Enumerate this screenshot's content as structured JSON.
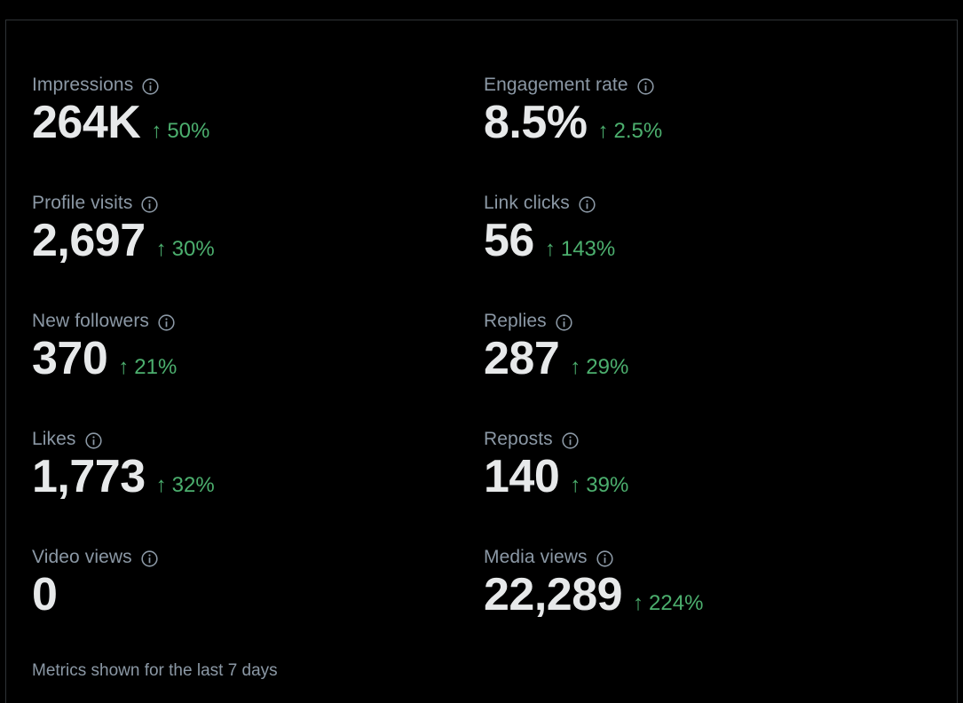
{
  "metrics": [
    {
      "label": "Impressions",
      "value": "264K",
      "change": "50%"
    },
    {
      "label": "Engagement rate",
      "value": "8.5%",
      "change": "2.5%"
    },
    {
      "label": "Profile visits",
      "value": "2,697",
      "change": "30%"
    },
    {
      "label": "Link clicks",
      "value": "56",
      "change": "143%"
    },
    {
      "label": "New followers",
      "value": "370",
      "change": "21%"
    },
    {
      "label": "Replies",
      "value": "287",
      "change": "29%"
    },
    {
      "label": "Likes",
      "value": "1,773",
      "change": "32%"
    },
    {
      "label": "Reposts",
      "value": "140",
      "change": "39%"
    },
    {
      "label": "Video views",
      "value": "0",
      "change": ""
    },
    {
      "label": "Media views",
      "value": "22,289",
      "change": "224%"
    }
  ],
  "trend_arrow": "↑",
  "footer": "Metrics shown for the last 7 days",
  "colors": {
    "background": "#000000",
    "label": "#8b98a5",
    "value": "#e7e9ea",
    "positive": "#4caf6e",
    "border": "#2f3336"
  },
  "icons": {
    "info": "info-circle-icon",
    "trend_up": "arrow-up-icon"
  }
}
